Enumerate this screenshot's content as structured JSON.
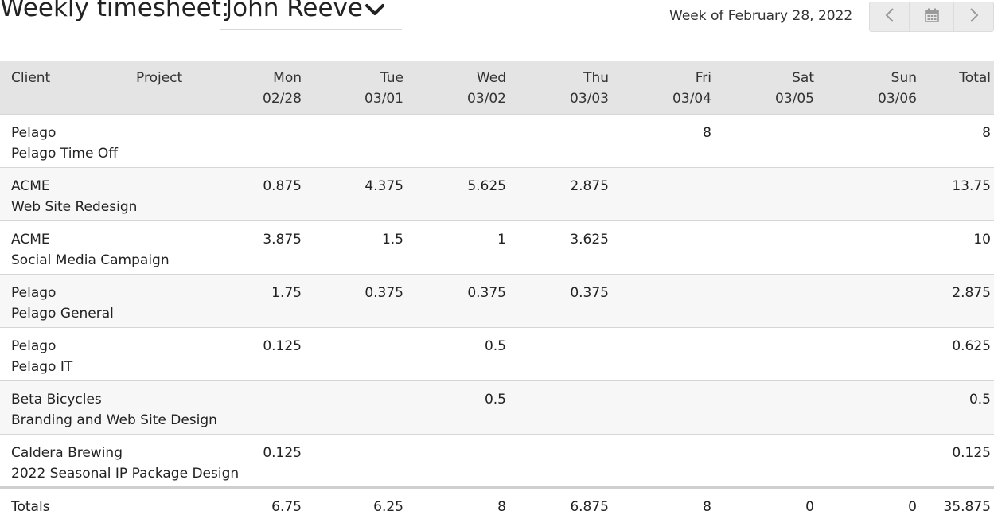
{
  "header": {
    "title": "Weekly timesheet:",
    "user": "John Reeve",
    "week_label": "Week of February 28, 2022"
  },
  "icons": {
    "dropdown": "chevron-down-icon",
    "prev": "chevron-left-icon",
    "calendar": "calendar-icon",
    "next": "chevron-right-icon"
  },
  "table": {
    "columns": {
      "client": "Client",
      "project": "Project",
      "days": [
        {
          "name": "Mon",
          "date": "02/28"
        },
        {
          "name": "Tue",
          "date": "03/01"
        },
        {
          "name": "Wed",
          "date": "03/02"
        },
        {
          "name": "Thu",
          "date": "03/03"
        },
        {
          "name": "Fri",
          "date": "03/04"
        },
        {
          "name": "Sat",
          "date": "03/05"
        },
        {
          "name": "Sun",
          "date": "03/06"
        }
      ],
      "total": "Total"
    },
    "rows": [
      {
        "client": "Pelago",
        "project": "Pelago Time Off",
        "hours": [
          "",
          "",
          "",
          "",
          "8",
          "",
          ""
        ],
        "total": "8"
      },
      {
        "client": "ACME",
        "project": "Web Site Redesign",
        "hours": [
          "0.875",
          "4.375",
          "5.625",
          "2.875",
          "",
          "",
          ""
        ],
        "total": "13.75"
      },
      {
        "client": "ACME",
        "project": "Social Media Campaign",
        "hours": [
          "3.875",
          "1.5",
          "1",
          "3.625",
          "",
          "",
          ""
        ],
        "total": "10"
      },
      {
        "client": "Pelago",
        "project": "Pelago General",
        "hours": [
          "1.75",
          "0.375",
          "0.375",
          "0.375",
          "",
          "",
          ""
        ],
        "total": "2.875"
      },
      {
        "client": "Pelago",
        "project": "Pelago IT",
        "hours": [
          "0.125",
          "",
          "0.5",
          "",
          "",
          "",
          ""
        ],
        "total": "0.625"
      },
      {
        "client": "Beta Bicycles",
        "project": "Branding and Web Site Design",
        "hours": [
          "",
          "",
          "0.5",
          "",
          "",
          "",
          ""
        ],
        "total": "0.5"
      },
      {
        "client": "Caldera Brewing",
        "project": "2022 Seasonal IP Package Design",
        "hours": [
          "0.125",
          "",
          "",
          "",
          "",
          "",
          ""
        ],
        "total": "0.125"
      }
    ],
    "totals": {
      "label": "Totals",
      "hours": [
        "6.75",
        "6.25",
        "8",
        "6.875",
        "8",
        "0",
        "0"
      ],
      "total": "35.875"
    }
  }
}
